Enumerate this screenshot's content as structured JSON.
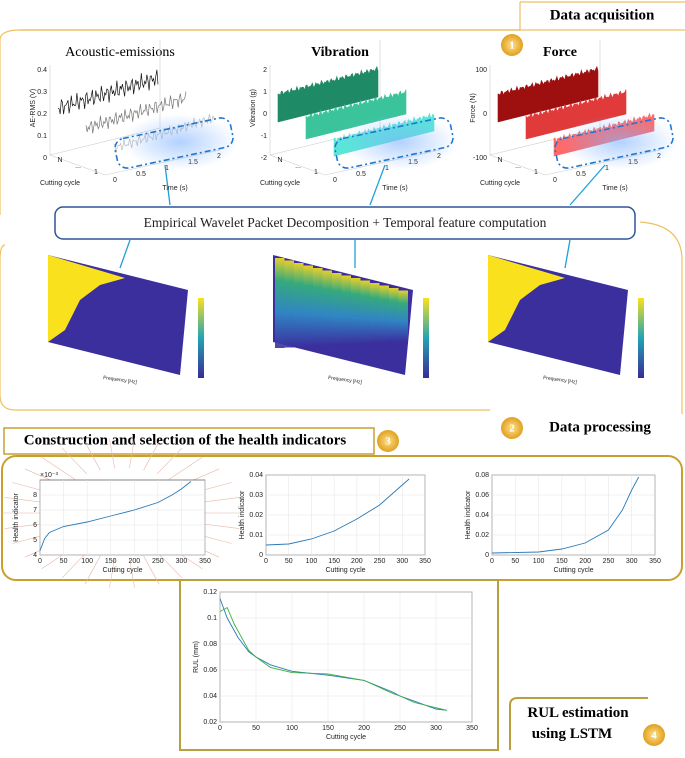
{
  "acquisition": {
    "label": "Data acquisition",
    "badge": "1",
    "plots": [
      {
        "title": "Acoustic-emissions",
        "y_label": "AE-RMS (V)",
        "x_label": "Time (s)",
        "depth_label": "Cutting cycle",
        "y_ticks": [
          "0.4",
          "0.3",
          "0.2",
          "0.1",
          "0"
        ],
        "x_ticks": [
          "0",
          "0.5",
          "1",
          "1.5",
          "2"
        ],
        "depth_ticks": [
          "N",
          "...",
          "1"
        ]
      },
      {
        "title": "Vibration",
        "y_label": "Vibration (g)",
        "x_label": "Time (s)",
        "depth_label": "Cutting cycle",
        "y_ticks": [
          "2",
          "1",
          "0",
          "-1",
          "-2"
        ],
        "x_ticks": [
          "0",
          "0.5",
          "1",
          "1.5",
          "2"
        ],
        "depth_ticks": [
          "N",
          "...",
          "1"
        ]
      },
      {
        "title": "Force",
        "y_label": "Force (N)",
        "x_label": "Time (s)",
        "depth_label": "Cutting cycle",
        "y_ticks": [
          "100",
          "0",
          "-100"
        ],
        "x_ticks": [
          "0",
          "0.5",
          "1",
          "1.5",
          "2"
        ],
        "depth_ticks": [
          "N",
          "...",
          "1"
        ]
      }
    ]
  },
  "processing": {
    "label": "Data processing",
    "badge": "2",
    "step": "Empirical Wavelet Packet Decomposition + Temporal feature computation",
    "spectrograms": [
      {
        "x_label": "Frequency [Hz]"
      },
      {
        "x_label": "Frequency [Hz]"
      },
      {
        "x_label": "Frequency [Hz]"
      }
    ]
  },
  "health_indicators": {
    "label": "Construction and selection of the health indicators",
    "badge": "3",
    "charts": [
      {
        "type": "line",
        "y_label": "Health indicator",
        "x_label": "Cutting cycle",
        "y_exponent": "×10⁻³",
        "color": "#2a7ab8",
        "x": [
          0,
          10,
          20,
          50,
          100,
          150,
          200,
          250,
          280,
          300,
          320
        ],
        "series": [
          {
            "color": "#2a7ab8",
            "values": [
              4.3,
              5.1,
              5.5,
              5.9,
              6.2,
              6.6,
              7.0,
              7.5,
              8.0,
              8.4,
              8.9
            ]
          }
        ],
        "xlim": [
          0,
          350
        ],
        "ylim": [
          4,
          9
        ],
        "xticks": [
          0,
          50,
          100,
          150,
          200,
          250,
          300,
          350
        ],
        "yticks": [
          4,
          5,
          6,
          7,
          8
        ]
      },
      {
        "type": "line",
        "y_label": "Health indicator",
        "x_label": "Cutting cycle",
        "x": [
          0,
          50,
          100,
          150,
          200,
          250,
          290,
          315
        ],
        "series": [
          {
            "color": "#2a7ab8",
            "values": [
              0.005,
              0.0055,
              0.008,
              0.012,
              0.018,
              0.025,
              0.033,
              0.038
            ]
          }
        ],
        "xlim": [
          0,
          350
        ],
        "ylim": [
          0,
          0.04
        ],
        "xticks": [
          0,
          50,
          100,
          150,
          200,
          250,
          300,
          350
        ],
        "yticks": [
          0,
          0.01,
          0.02,
          0.03,
          0.04
        ]
      },
      {
        "type": "line",
        "y_label": "Health indicator",
        "x_label": "Cutting cycle",
        "x": [
          0,
          100,
          150,
          200,
          250,
          280,
          300,
          315
        ],
        "series": [
          {
            "color": "#2a7ab8",
            "values": [
              0.002,
              0.003,
              0.006,
              0.012,
              0.025,
              0.045,
              0.065,
              0.078
            ]
          }
        ],
        "xlim": [
          0,
          350
        ],
        "ylim": [
          0,
          0.08
        ],
        "xticks": [
          0,
          50,
          100,
          150,
          200,
          250,
          300,
          350
        ],
        "yticks": [
          0,
          0.02,
          0.04,
          0.06,
          0.08
        ]
      }
    ]
  },
  "rul_estimation": {
    "label": "RUL estimation using LSTM",
    "badge": "4",
    "chart": {
      "type": "line",
      "y_label": "RUL (mm)",
      "x_label": "Cutting cycle",
      "x": [
        0,
        10,
        20,
        25,
        40,
        50,
        70,
        100,
        150,
        200,
        240,
        250,
        270,
        300,
        315
      ],
      "series": [
        {
          "color": "#2a7ab8",
          "values": [
            0.115,
            0.1,
            0.09,
            0.085,
            0.074,
            0.07,
            0.064,
            0.059,
            0.056,
            0.052,
            0.043,
            0.04,
            0.036,
            0.03,
            0.029
          ]
        },
        {
          "color": "#3cb043",
          "values": [
            0.105,
            0.108,
            0.095,
            0.09,
            0.075,
            0.07,
            0.062,
            0.058,
            0.057,
            0.052,
            0.042,
            0.04,
            0.035,
            0.031,
            0.029
          ]
        }
      ],
      "xlim": [
        0,
        350
      ],
      "ylim": [
        0.02,
        0.12
      ],
      "xticks": [
        0,
        50,
        100,
        150,
        200,
        250,
        300,
        350
      ],
      "yticks": [
        0.02,
        0.04,
        0.06,
        0.08,
        0.1,
        0.12
      ]
    }
  }
}
